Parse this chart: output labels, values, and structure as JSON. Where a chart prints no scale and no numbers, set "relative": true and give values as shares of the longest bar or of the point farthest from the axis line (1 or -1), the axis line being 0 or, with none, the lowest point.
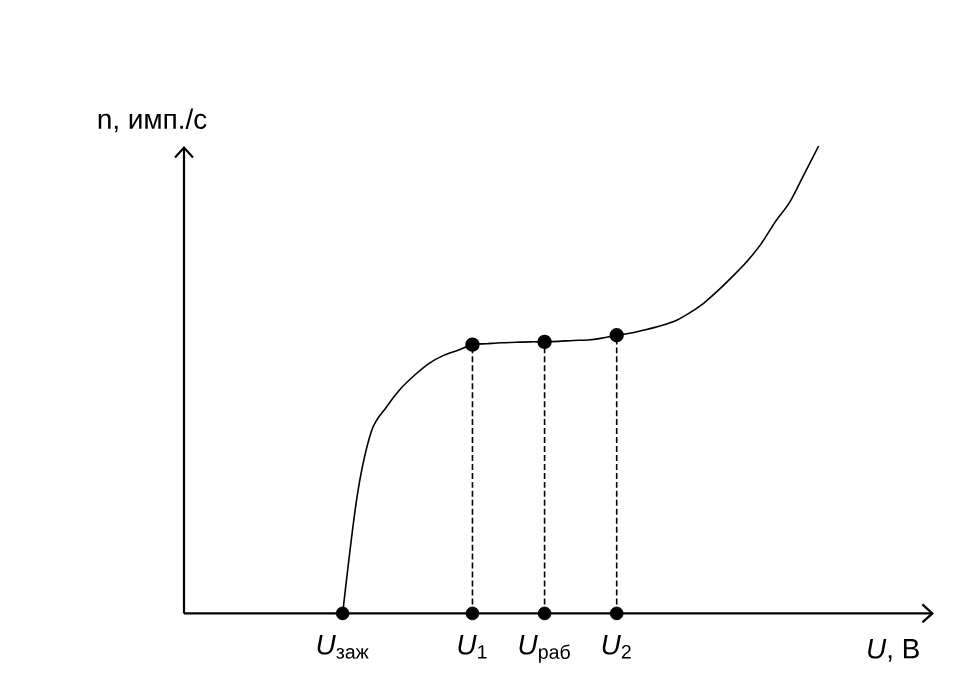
{
  "chart_data": {
    "type": "line",
    "relative": true,
    "xlabel": "*U*, В",
    "ylabel": "n, имп./с",
    "categories": [
      null,
      null,
      null,
      null,
      null,
      null,
      null,
      null,
      null,
      null,
      null,
      "*U*$_{заж}$",
      null,
      null,
      null,
      null,
      null,
      null,
      null,
      null,
      "*U*$_{1}$",
      null,
      null,
      null,
      null,
      "*U*$_{раб}$",
      null,
      null,
      null,
      null,
      "*U*$_{2}$",
      null,
      null,
      null,
      null,
      null,
      null,
      null,
      null,
      null,
      null,
      null,
      null,
      null,
      null,
      null,
      null,
      null,
      null,
      null,
      null,
      null,
      null
    ],
    "tick_labels": "x",
    "series": [
      {
        "color": "#000000",
        "marker": "none",
        "values": [
          null,
          null,
          null,
          null,
          null,
          null,
          null,
          null,
          null,
          null,
          null,
          0,
          0.25,
          0.39,
          0.44,
          0.48,
          0.51,
          0.535,
          0.552,
          0.563,
          0.575,
          0.577,
          0.579,
          0.58,
          0.581,
          0.581,
          0.582,
          0.584,
          0.585,
          0.589,
          0.595,
          0.6,
          0.607,
          0.615,
          0.625,
          0.642,
          0.663,
          0.69,
          0.72,
          0.752,
          0.79,
          0.838,
          0.88,
          0.94,
          1,
          null,
          null,
          null,
          null,
          null,
          null,
          null,
          null
        ]
      },
      {
        "type": "lollipop",
        "color": "#000000",
        "marker": "circle",
        "line_style": "dashed",
        "values": [
          null,
          null,
          null,
          null,
          null,
          null,
          null,
          null,
          null,
          null,
          null,
          null,
          null,
          null,
          null,
          null,
          null,
          null,
          null,
          null,
          0.575,
          null,
          null,
          null,
          null,
          0.581,
          null,
          null,
          null,
          null,
          0.595,
          null,
          null,
          null,
          null,
          null,
          null,
          null,
          null,
          null,
          null,
          null,
          null,
          null,
          null,
          null,
          null,
          null,
          null,
          null,
          null,
          null,
          null
        ]
      },
      {
        "type": "scatter",
        "color": "#000000",
        "marker": "circle",
        "values": [
          null,
          null,
          null,
          null,
          null,
          null,
          null,
          null,
          null,
          null,
          null,
          0,
          null,
          null,
          null,
          null,
          null,
          null,
          null,
          null,
          0,
          null,
          null,
          null,
          null,
          0,
          null,
          null,
          null,
          null,
          0,
          null,
          null,
          null,
          null,
          null,
          null,
          null,
          null,
          null,
          null,
          null,
          null,
          null,
          null,
          null,
          null,
          null,
          null,
          null,
          null,
          null,
          null
        ]
      }
    ]
  }
}
